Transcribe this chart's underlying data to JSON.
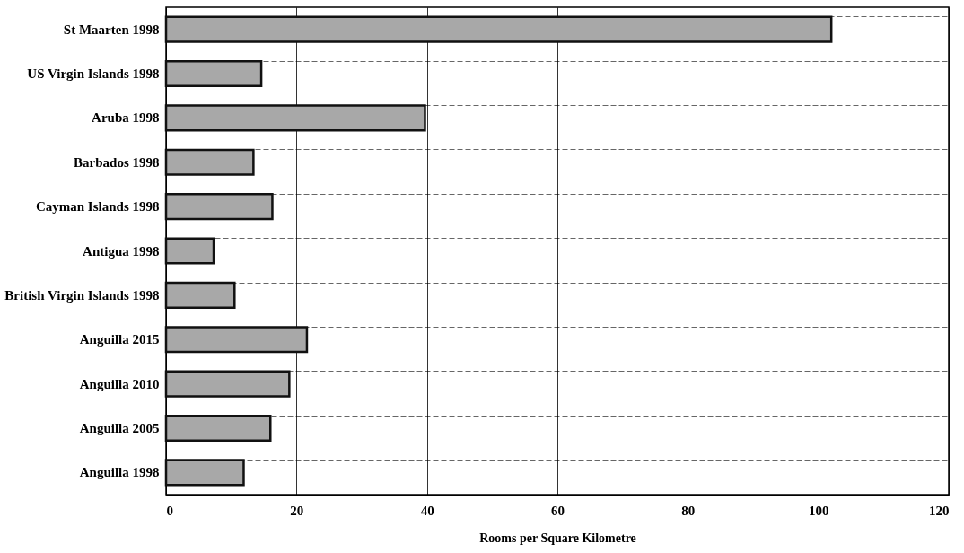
{
  "chart_data": {
    "type": "bar",
    "orientation": "horizontal",
    "xlabel": "Rooms per Square Kilometre",
    "categories": [
      "St Maarten 1998",
      "US Virgin Islands 1998",
      "Aruba 1998",
      "Barbados 1998",
      "Cayman Islands 1998",
      "Antigua 1998",
      "British Virgin Islands 1998",
      "Anguilla 2015",
      "Anguilla 2010",
      "Anguilla 2005",
      "Anguilla 1998"
    ],
    "values": [
      102,
      14.6,
      39.7,
      13.4,
      16.3,
      7.3,
      10.5,
      21.6,
      18.9,
      16,
      11.9
    ],
    "color": "#a8a8a8",
    "xlim": [
      0,
      120
    ],
    "xticks": [
      0,
      20,
      40,
      60,
      80,
      100,
      120
    ],
    "grid": true
  }
}
